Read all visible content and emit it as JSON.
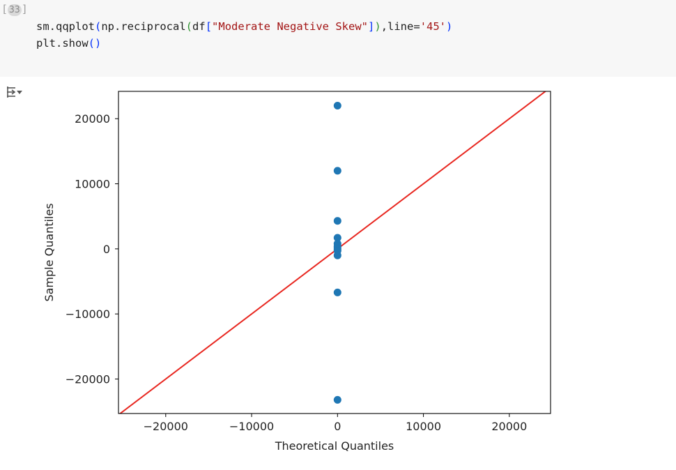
{
  "cell": {
    "execution_count": "33",
    "exec_open": "[",
    "exec_close": "]",
    "code": {
      "line1": {
        "fn": "sm.qqplot",
        "p1": "(",
        "inner_fn": "np.reciprocal",
        "p2": "(",
        "df": "df",
        "b1": "[",
        "str": "\"Moderate Negative Skew\"",
        "b2": "]",
        "p3": ")",
        "kw": ",line=",
        "str2": "'45'",
        "p4": ")"
      },
      "line2": {
        "fn": "plt.show",
        "p1": "(",
        "p2": ")"
      }
    }
  },
  "output": {
    "icon": "output-toggle-icon"
  },
  "chart_data": {
    "type": "scatter",
    "title": "",
    "xlabel": "Theoretical Quantiles",
    "ylabel": "Sample Quantiles",
    "xlim": [
      -25500,
      24800
    ],
    "ylim": [
      -25300,
      24200
    ],
    "xticks": [
      -20000,
      -10000,
      0,
      10000,
      20000
    ],
    "xtick_labels": [
      "−20000",
      "−10000",
      "0",
      "10000",
      "20000"
    ],
    "yticks": [
      -20000,
      -10000,
      0,
      10000,
      20000
    ],
    "ytick_labels": [
      "−20000",
      "−10000",
      "0",
      "10000",
      "20000"
    ],
    "points": [
      {
        "x": 0,
        "y": 22000
      },
      {
        "x": 0,
        "y": 12000
      },
      {
        "x": 0,
        "y": 4300
      },
      {
        "x": 0,
        "y": 1700
      },
      {
        "x": 0,
        "y": 800
      },
      {
        "x": 0,
        "y": 400
      },
      {
        "x": 0,
        "y": 150
      },
      {
        "x": 0,
        "y": -100
      },
      {
        "x": 0,
        "y": -300
      },
      {
        "x": 0,
        "y": -1000
      },
      {
        "x": 0,
        "y": -6700
      },
      {
        "x": 0,
        "y": -23200
      }
    ],
    "reference_line": {
      "type": "45-degree",
      "x": [
        -25500,
        24800
      ],
      "y": [
        -25500,
        24800
      ]
    },
    "colors": {
      "points": "#1f77b4",
      "line": "#e8261f",
      "axes": "#000000"
    },
    "grid": false,
    "legend": "none"
  }
}
